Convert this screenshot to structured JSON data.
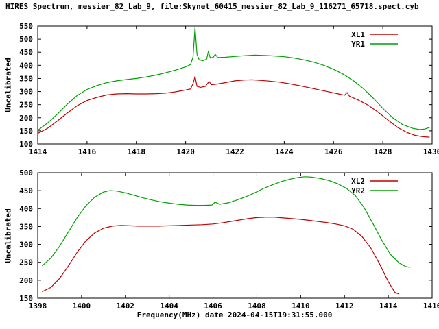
{
  "title": "HIRES Spectrum, messier_82_Lab_9, file:Skynet_60415_messier_82_Lab_9_116271_65718.spect.cyb",
  "xlabel": "Frequency(MHz) date 2024-04-15T19:31:55.000",
  "colors": {
    "red": "#c00000",
    "green": "#00a000",
    "axis": "#000000",
    "background": "#ffffff"
  },
  "chart_data": [
    {
      "panel": "top",
      "type": "line",
      "ylabel": "Uncalibrated",
      "xlim": [
        1414,
        1430
      ],
      "ylim": [
        100,
        550
      ],
      "xticks": [
        1414,
        1416,
        1418,
        1420,
        1422,
        1424,
        1426,
        1428,
        1430
      ],
      "yticks": [
        100,
        150,
        200,
        250,
        300,
        350,
        400,
        450,
        500,
        550
      ],
      "grid": false,
      "legend_position": "top-right",
      "series": [
        {
          "name": "XL1",
          "color": "#c00000",
          "points": [
            [
              1414.0,
              140
            ],
            [
              1414.4,
              160
            ],
            [
              1414.8,
              188
            ],
            [
              1415.2,
              218
            ],
            [
              1415.6,
              246
            ],
            [
              1416.0,
              266
            ],
            [
              1416.4,
              278
            ],
            [
              1416.8,
              287
            ],
            [
              1417.2,
              291
            ],
            [
              1417.6,
              292
            ],
            [
              1418.0,
              291
            ],
            [
              1418.4,
              291
            ],
            [
              1418.8,
              292
            ],
            [
              1419.2,
              294
            ],
            [
              1419.6,
              299
            ],
            [
              1420.0,
              306
            ],
            [
              1420.2,
              310
            ],
            [
              1420.3,
              330
            ],
            [
              1420.38,
              358
            ],
            [
              1420.46,
              320
            ],
            [
              1420.6,
              316
            ],
            [
              1420.8,
              320
            ],
            [
              1420.95,
              338
            ],
            [
              1421.05,
              326
            ],
            [
              1421.3,
              329
            ],
            [
              1421.6,
              334
            ],
            [
              1422.0,
              341
            ],
            [
              1422.4,
              344
            ],
            [
              1422.7,
              345
            ],
            [
              1423.0,
              343
            ],
            [
              1423.4,
              340
            ],
            [
              1423.8,
              336
            ],
            [
              1424.2,
              330
            ],
            [
              1424.6,
              323
            ],
            [
              1425.0,
              315
            ],
            [
              1425.4,
              307
            ],
            [
              1425.8,
              299
            ],
            [
              1426.2,
              291
            ],
            [
              1426.45,
              286
            ],
            [
              1426.55,
              296
            ],
            [
              1426.65,
              282
            ],
            [
              1427.0,
              268
            ],
            [
              1427.4,
              248
            ],
            [
              1427.8,
              222
            ],
            [
              1428.2,
              192
            ],
            [
              1428.6,
              163
            ],
            [
              1429.0,
              143
            ],
            [
              1429.3,
              133
            ],
            [
              1429.6,
              128
            ],
            [
              1429.9,
              126
            ]
          ]
        },
        {
          "name": "YR1",
          "color": "#00a000",
          "points": [
            [
              1414.0,
              152
            ],
            [
              1414.4,
              180
            ],
            [
              1414.8,
              214
            ],
            [
              1415.2,
              252
            ],
            [
              1415.6,
              285
            ],
            [
              1416.0,
              308
            ],
            [
              1416.4,
              323
            ],
            [
              1416.8,
              334
            ],
            [
              1417.2,
              341
            ],
            [
              1417.6,
              346
            ],
            [
              1418.0,
              350
            ],
            [
              1418.4,
              356
            ],
            [
              1418.8,
              363
            ],
            [
              1419.2,
              372
            ],
            [
              1419.6,
              382
            ],
            [
              1420.0,
              394
            ],
            [
              1420.2,
              403
            ],
            [
              1420.3,
              432
            ],
            [
              1420.38,
              545
            ],
            [
              1420.46,
              442
            ],
            [
              1420.55,
              421
            ],
            [
              1420.7,
              418
            ],
            [
              1420.85,
              424
            ],
            [
              1420.92,
              452
            ],
            [
              1421.0,
              428
            ],
            [
              1421.12,
              431
            ],
            [
              1421.2,
              442
            ],
            [
              1421.3,
              430
            ],
            [
              1421.6,
              431
            ],
            [
              1422.0,
              434
            ],
            [
              1422.4,
              437
            ],
            [
              1422.8,
              439
            ],
            [
              1423.2,
              438
            ],
            [
              1423.6,
              436
            ],
            [
              1424.0,
              433
            ],
            [
              1424.4,
              428
            ],
            [
              1424.8,
              421
            ],
            [
              1425.2,
              412
            ],
            [
              1425.6,
              400
            ],
            [
              1426.0,
              385
            ],
            [
              1426.4,
              366
            ],
            [
              1426.8,
              342
            ],
            [
              1427.2,
              312
            ],
            [
              1427.6,
              276
            ],
            [
              1428.0,
              236
            ],
            [
              1428.4,
              200
            ],
            [
              1428.8,
              174
            ],
            [
              1429.2,
              160
            ],
            [
              1429.5,
              155
            ],
            [
              1429.7,
              157
            ],
            [
              1429.9,
              163
            ]
          ]
        }
      ]
    },
    {
      "panel": "bottom",
      "type": "line",
      "ylabel": "Uncalibrated",
      "xlim": [
        1398,
        1416
      ],
      "ylim": [
        150,
        500
      ],
      "xticks": [
        1398,
        1400,
        1402,
        1404,
        1406,
        1408,
        1410,
        1412,
        1414,
        1416
      ],
      "yticks": [
        150,
        200,
        250,
        300,
        350,
        400,
        450,
        500
      ],
      "grid": false,
      "legend_position": "top-right",
      "series": [
        {
          "name": "XL2",
          "color": "#c00000",
          "points": [
            [
              1398.2,
              168
            ],
            [
              1398.6,
              180
            ],
            [
              1399.0,
              205
            ],
            [
              1399.4,
              240
            ],
            [
              1399.8,
              278
            ],
            [
              1400.2,
              310
            ],
            [
              1400.6,
              332
            ],
            [
              1401.0,
              345
            ],
            [
              1401.4,
              351
            ],
            [
              1401.8,
              353
            ],
            [
              1402.2,
              352
            ],
            [
              1402.6,
              351
            ],
            [
              1403.0,
              351
            ],
            [
              1403.5,
              351
            ],
            [
              1404.0,
              352
            ],
            [
              1404.5,
              353
            ],
            [
              1405.0,
              354
            ],
            [
              1405.5,
              355
            ],
            [
              1406.0,
              357
            ],
            [
              1406.4,
              360
            ],
            [
              1406.8,
              364
            ],
            [
              1407.2,
              368
            ],
            [
              1407.6,
              372
            ],
            [
              1408.0,
              375
            ],
            [
              1408.4,
              376
            ],
            [
              1408.8,
              376
            ],
            [
              1409.2,
              374
            ],
            [
              1409.6,
              372
            ],
            [
              1410.0,
              370
            ],
            [
              1410.4,
              367
            ],
            [
              1410.8,
              364
            ],
            [
              1411.2,
              361
            ],
            [
              1411.6,
              357
            ],
            [
              1412.0,
              352
            ],
            [
              1412.4,
              342
            ],
            [
              1412.8,
              322
            ],
            [
              1413.2,
              290
            ],
            [
              1413.6,
              246
            ],
            [
              1414.0,
              196
            ],
            [
              1414.3,
              166
            ],
            [
              1414.5,
              161
            ]
          ]
        },
        {
          "name": "YR2",
          "color": "#00a000",
          "points": [
            [
              1398.2,
              240
            ],
            [
              1398.6,
              262
            ],
            [
              1399.0,
              295
            ],
            [
              1399.4,
              335
            ],
            [
              1399.8,
              375
            ],
            [
              1400.2,
              408
            ],
            [
              1400.6,
              432
            ],
            [
              1401.0,
              446
            ],
            [
              1401.3,
              450
            ],
            [
              1401.6,
              449
            ],
            [
              1402.0,
              444
            ],
            [
              1402.4,
              437
            ],
            [
              1402.8,
              430
            ],
            [
              1403.2,
              424
            ],
            [
              1403.6,
              419
            ],
            [
              1404.0,
              415
            ],
            [
              1404.4,
              412
            ],
            [
              1404.8,
              410
            ],
            [
              1405.2,
              409
            ],
            [
              1405.6,
              409
            ],
            [
              1405.95,
              410
            ],
            [
              1406.1,
              418
            ],
            [
              1406.3,
              412
            ],
            [
              1406.7,
              416
            ],
            [
              1407.1,
              424
            ],
            [
              1407.5,
              433
            ],
            [
              1407.9,
              444
            ],
            [
              1408.3,
              456
            ],
            [
              1408.7,
              466
            ],
            [
              1409.1,
              475
            ],
            [
              1409.5,
              482
            ],
            [
              1409.9,
              487
            ],
            [
              1410.2,
              489
            ],
            [
              1410.5,
              488
            ],
            [
              1410.9,
              484
            ],
            [
              1411.3,
              478
            ],
            [
              1411.7,
              469
            ],
            [
              1412.1,
              456
            ],
            [
              1412.5,
              436
            ],
            [
              1412.9,
              402
            ],
            [
              1413.3,
              358
            ],
            [
              1413.7,
              312
            ],
            [
              1414.1,
              272
            ],
            [
              1414.5,
              248
            ],
            [
              1414.8,
              238
            ],
            [
              1415.0,
              236
            ]
          ]
        }
      ]
    }
  ]
}
